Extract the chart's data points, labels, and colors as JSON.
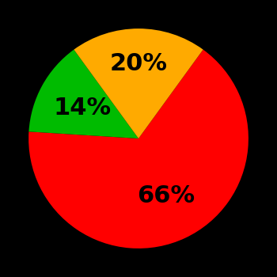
{
  "slices": [
    66,
    14,
    20
  ],
  "colors": [
    "#ff0000",
    "#00bb00",
    "#ffaa00"
  ],
  "labels": [
    "66%",
    "14%",
    "20%"
  ],
  "background_color": "#000000",
  "label_fontsize": 22,
  "label_fontweight": "bold",
  "label_color": "black"
}
